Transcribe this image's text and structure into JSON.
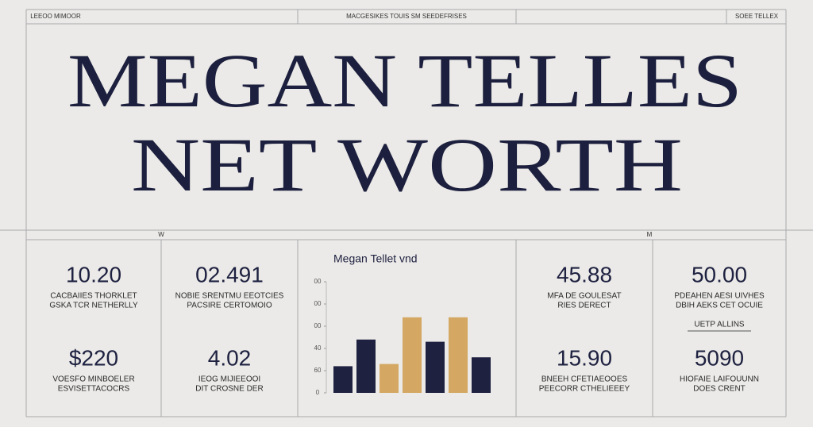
{
  "header": {
    "left": "LEEOO MIMOOR",
    "center": "MACGESIKES TOUIS SM SEEDEFRISES",
    "right": "SOEE TELLEX"
  },
  "title": {
    "line1": "MEGAN TELLES",
    "line2": "NET WORTH"
  },
  "markers": [
    "W",
    "M"
  ],
  "panels": [
    {
      "stats": [
        {
          "figure": "10.20",
          "caption": [
            "CACBAIIES THORKLET",
            "GSKA TCR NETHERLLY"
          ]
        },
        {
          "figure": "$220",
          "caption": [
            "VOESFO MINBOELER",
            "ESVISETTACOCRS"
          ]
        }
      ]
    },
    {
      "stats": [
        {
          "figure": "02.491",
          "caption": [
            "NOBIE SRENTMU EEOTCIES",
            "PACSIRE CERTOMOIO"
          ]
        },
        {
          "figure": "4.02",
          "caption": [
            "IEOG MIJIEEOOI",
            "DIT CROSNE DER"
          ]
        }
      ]
    },
    {
      "stats": [
        {
          "figure": "45.88",
          "caption": [
            "MFA DE GOULESAT",
            "RIES DERECT"
          ]
        },
        {
          "figure": "15.90",
          "caption": [
            "BNEEH CFETIAEOOES",
            "PEECORR CTHELIEEEY"
          ]
        }
      ]
    },
    {
      "tag": "UETP ALLINS",
      "stats": [
        {
          "figure": "50.00",
          "caption": [
            "PDEAHEN AESI UIVHES",
            "DBIH AEKS CET OCUIE"
          ]
        },
        {
          "figure": "5090",
          "caption": [
            "HIOFAIE LAIFOUUNN",
            "DOES CRENT"
          ]
        }
      ]
    }
  ],
  "chart": {
    "title": "Megan Tellet vnd",
    "ylim": [
      0,
      5
    ],
    "yticks": [
      {
        "value": 0,
        "label": "0"
      },
      {
        "value": 1,
        "label": "60"
      },
      {
        "value": 2,
        "label": "40"
      },
      {
        "value": 3,
        "label": "00"
      },
      {
        "value": 4,
        "label": "00"
      },
      {
        "value": 5,
        "label": "00"
      }
    ],
    "series": [
      {
        "color": "#1e2140"
      },
      {
        "color": "#d4a862"
      }
    ],
    "bars": [
      {
        "value": 1.2,
        "series": 0
      },
      {
        "value": 2.4,
        "series": 0
      },
      {
        "value": 1.3,
        "series": 1
      },
      {
        "value": 3.4,
        "series": 1
      },
      {
        "value": 2.3,
        "series": 0
      },
      {
        "value": 3.4,
        "series": 1
      },
      {
        "value": 1.6,
        "series": 0
      }
    ]
  }
}
